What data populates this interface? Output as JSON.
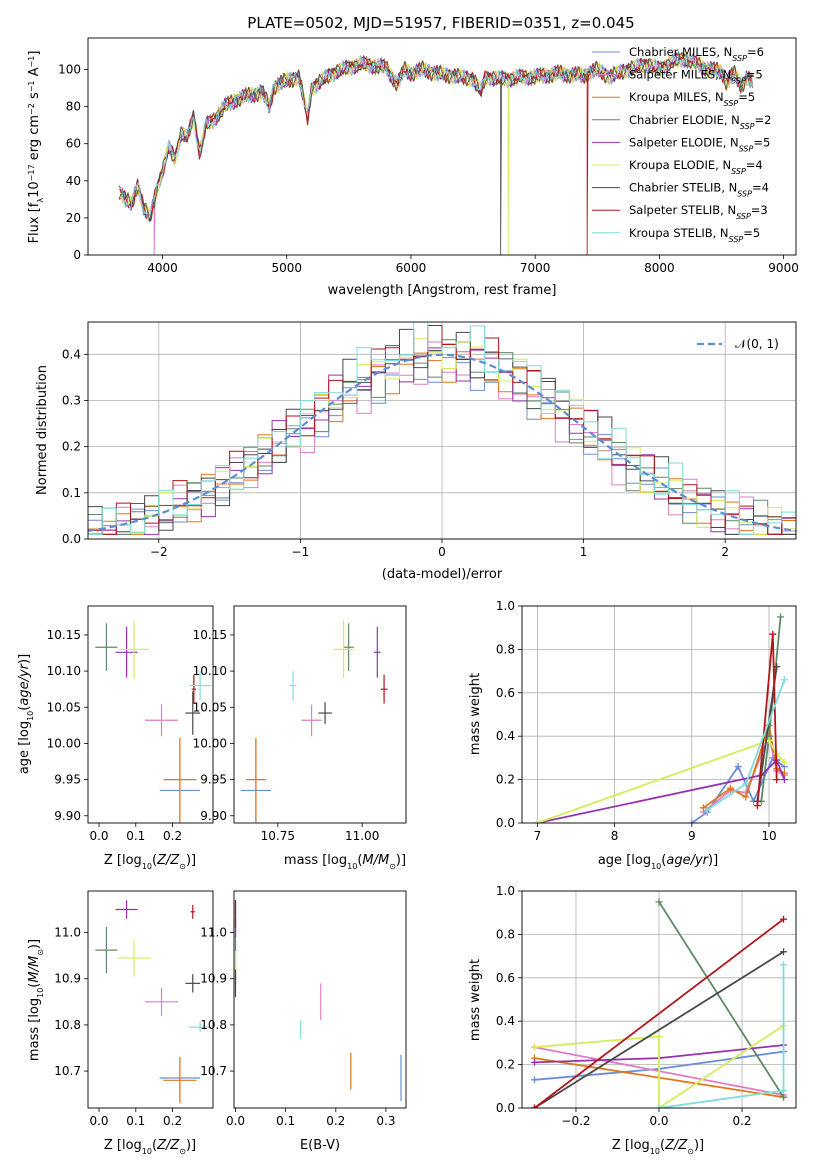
{
  "figure": {
    "title": "PLATE=0502, MJD=51957, FIBERID=0351, z=0.045"
  },
  "series": [
    {
      "name": "Chabrier MILES",
      "nssp": "6",
      "color": "#6a8ed8"
    },
    {
      "name": "Salpeter MILES",
      "nssp": "5",
      "color": "#de7ec4"
    },
    {
      "name": "Kroupa MILES",
      "nssp": "5",
      "color": "#e0761a"
    },
    {
      "name": "Chabrier ELODIE",
      "nssp": "2",
      "color": "#5e8a65"
    },
    {
      "name": "Salpeter ELODIE",
      "nssp": "5",
      "color": "#9433b0"
    },
    {
      "name": "Kroupa ELODIE",
      "nssp": "4",
      "color": "#d5ec5a"
    },
    {
      "name": "Chabrier STELIB",
      "nssp": "4",
      "color": "#484848"
    },
    {
      "name": "Salpeter STELIB",
      "nssp": "3",
      "color": "#b3151c"
    },
    {
      "name": "Kroupa STELIB",
      "nssp": "5",
      "color": "#7edcdc"
    }
  ],
  "chart_data": [
    {
      "id": "spectrum",
      "type": "line",
      "title": "PLATE=0502, MJD=51957, FIBERID=0351, z=0.045",
      "xlabel": "wavelength [Angstrom, rest frame]",
      "ylabel": "Flux [f_λ 10^-17 erg cm^-2 s^-1 A^-1]",
      "xlim": [
        3400,
        9100
      ],
      "ylim": [
        0,
        117
      ],
      "xticks": [
        4000,
        5000,
        6000,
        7000,
        8000,
        9000
      ],
      "yticks": [
        0,
        20,
        40,
        60,
        80,
        100
      ],
      "legend": "top-right",
      "x": [
        3650,
        3700,
        3750,
        3800,
        3850,
        3900,
        3950,
        4000,
        4050,
        4100,
        4150,
        4200,
        4250,
        4300,
        4350,
        4400,
        4450,
        4500,
        4600,
        4700,
        4800,
        4860,
        4900,
        5000,
        5100,
        5170,
        5200,
        5300,
        5400,
        5500,
        5600,
        5700,
        5800,
        5890,
        5950,
        6000,
        6100,
        6200,
        6300,
        6400,
        6500,
        6563,
        6600,
        6700,
        6800,
        6900,
        7000,
        7100,
        7200,
        7300,
        7400,
        7500,
        7600,
        7700,
        7800,
        7900,
        8000,
        8100,
        8200,
        8300,
        8400,
        8500,
        8542,
        8600,
        8662,
        8700,
        8750
      ],
      "y": [
        35,
        30,
        27,
        38,
        25,
        20,
        35,
        45,
        58,
        52,
        66,
        63,
        75,
        55,
        70,
        72,
        76,
        80,
        84,
        86,
        88,
        80,
        91,
        94,
        96,
        73,
        90,
        95,
        99,
        101,
        103,
        102,
        101,
        92,
        100,
        98,
        100,
        98,
        97,
        96,
        95,
        88,
        96,
        95,
        95,
        96,
        96,
        97,
        98,
        97,
        97,
        100,
        96,
        99,
        101,
        103,
        100,
        104,
        106,
        103,
        100,
        99,
        93,
        98,
        91,
        96,
        93
      ],
      "line_drops": [
        {
          "series": "Chabrier STELIB",
          "x": 6720
        },
        {
          "series": "Kroupa ELODIE",
          "x": 6780
        },
        {
          "series": "Salpeter STELIB",
          "x": 7420
        },
        {
          "series": "Salpeter MILES",
          "x": 3930
        }
      ]
    },
    {
      "id": "residuals",
      "type": "line",
      "xlabel": "(data-model)/error",
      "ylabel": "Normed distribution",
      "xlim": [
        -2.5,
        2.5
      ],
      "ylim": [
        0,
        0.47
      ],
      "xticks": [
        -2,
        -1,
        0,
        1,
        2
      ],
      "yticks": [
        0.0,
        0.1,
        0.2,
        0.3,
        0.4
      ],
      "grid": true,
      "legend": "top-right",
      "reference": {
        "label": "𝒩(0, 1)",
        "color": "#5b8ed6",
        "dashed": true
      },
      "histogram_bin_width": 0.1,
      "histogram_note": "step histograms per series, approximately normal around 0"
    },
    {
      "id": "age_vs_z",
      "type": "scatter",
      "xlabel": "Z [log10(Z/Z⊙)]",
      "ylabel": "age  [log10(age/yr)]",
      "xlim": [
        -0.03,
        0.31
      ],
      "ylim": [
        9.89,
        10.19
      ],
      "xticks": [
        0.0,
        0.1,
        0.2
      ],
      "yticks": [
        9.9,
        9.95,
        10.0,
        10.05,
        10.1,
        10.15
      ],
      "points": [
        {
          "series": "Chabrier MILES",
          "x": 0.22,
          "y": 9.935,
          "xerr": 0.055,
          "yerr": 0.07
        },
        {
          "series": "Salpeter MILES",
          "x": 0.17,
          "y": 10.032,
          "xerr": 0.045,
          "yerr": 0.022
        },
        {
          "series": "Kroupa MILES",
          "x": 0.22,
          "y": 9.95,
          "xerr": 0.045,
          "yerr": 0.058
        },
        {
          "series": "Chabrier ELODIE",
          "x": 0.02,
          "y": 10.133,
          "xerr": 0.03,
          "yerr": 0.033
        },
        {
          "series": "Salpeter ELODIE",
          "x": 0.075,
          "y": 10.126,
          "xerr": 0.03,
          "yerr": 0.035
        },
        {
          "series": "Kroupa ELODIE",
          "x": 0.095,
          "y": 10.13,
          "xerr": 0.04,
          "yerr": 0.04
        },
        {
          "series": "Chabrier STELIB",
          "x": 0.255,
          "y": 10.042,
          "xerr": 0.02,
          "yerr": 0.03
        },
        {
          "series": "Salpeter STELIB",
          "x": 0.258,
          "y": 10.075,
          "xerr": 0.006,
          "yerr": 0.02
        },
        {
          "series": "Kroupa STELIB",
          "x": 0.275,
          "y": 10.08,
          "xerr": 0.03,
          "yerr": 0.02
        }
      ]
    },
    {
      "id": "age_vs_mass",
      "type": "scatter",
      "xlabel": "mass [log10(M/M⊙)]",
      "ylabel": "",
      "xlim": [
        10.62,
        11.13
      ],
      "ylim": [
        9.89,
        10.19
      ],
      "xticks": [
        10.75,
        11.0
      ],
      "yticks": [
        9.9,
        9.95,
        10.0,
        10.05,
        10.1,
        10.15
      ],
      "points": [
        {
          "series": "Chabrier MILES",
          "x": 10.685,
          "y": 9.935,
          "xerr": 0.045,
          "yerr": 0.07
        },
        {
          "series": "Salpeter MILES",
          "x": 10.85,
          "y": 10.032,
          "xerr": 0.03,
          "yerr": 0.022
        },
        {
          "series": "Kroupa MILES",
          "x": 10.685,
          "y": 9.95,
          "xerr": 0.03,
          "yerr": 0.058
        },
        {
          "series": "Chabrier ELODIE",
          "x": 10.96,
          "y": 10.133,
          "xerr": 0.015,
          "yerr": 0.033
        },
        {
          "series": "Salpeter ELODIE",
          "x": 11.045,
          "y": 10.126,
          "xerr": 0.01,
          "yerr": 0.035
        },
        {
          "series": "Kroupa ELODIE",
          "x": 10.945,
          "y": 10.13,
          "xerr": 0.03,
          "yerr": 0.04
        },
        {
          "series": "Chabrier STELIB",
          "x": 10.89,
          "y": 10.042,
          "xerr": 0.02,
          "yerr": 0.015
        },
        {
          "series": "Salpeter STELIB",
          "x": 11.065,
          "y": 10.075,
          "xerr": 0.01,
          "yerr": 0.02
        },
        {
          "series": "Kroupa STELIB",
          "x": 10.795,
          "y": 10.08,
          "xerr": 0.01,
          "yerr": 0.02
        }
      ]
    },
    {
      "id": "weight_vs_age",
      "type": "line",
      "xlabel": "age  [log10(age/yr)]",
      "ylabel": "mass weight",
      "xlim": [
        6.8,
        10.35
      ],
      "ylim": [
        0,
        1.0
      ],
      "xticks": [
        7,
        8,
        9,
        10
      ],
      "yticks": [
        0.0,
        0.2,
        0.4,
        0.6,
        0.8,
        1.0
      ],
      "grid": true,
      "lines": [
        {
          "series": "Chabrier MILES",
          "x": [
            9.0,
            9.2,
            9.6,
            9.8,
            10.05,
            10.2
          ],
          "y": [
            0.0,
            0.05,
            0.26,
            0.1,
            0.3,
            0.26
          ]
        },
        {
          "series": "Salpeter MILES",
          "x": [
            9.15,
            9.5,
            9.7,
            10.0,
            10.1,
            10.2
          ],
          "y": [
            0.05,
            0.15,
            0.14,
            0.4,
            0.24,
            0.22
          ]
        },
        {
          "series": "Kroupa MILES",
          "x": [
            9.15,
            9.5,
            9.7,
            10.0,
            10.1,
            10.2
          ],
          "y": [
            0.07,
            0.16,
            0.12,
            0.45,
            0.25,
            0.23
          ]
        },
        {
          "series": "Chabrier ELODIE",
          "x": [
            9.9,
            10.0,
            10.15
          ],
          "y": [
            0.1,
            0.4,
            0.95
          ]
        },
        {
          "series": "Salpeter ELODIE",
          "x": [
            7.0,
            9.9,
            10.1,
            10.2
          ],
          "y": [
            0.0,
            0.22,
            0.29,
            0.2
          ]
        },
        {
          "series": "Kroupa ELODIE",
          "x": [
            7.0,
            10.0,
            10.1,
            10.2
          ],
          "y": [
            0.0,
            0.38,
            0.32,
            0.28
          ]
        },
        {
          "series": "Chabrier STELIB",
          "x": [
            9.85,
            10.1
          ],
          "y": [
            0.1,
            0.72
          ]
        },
        {
          "series": "Salpeter STELIB",
          "x": [
            9.85,
            10.05,
            10.1
          ],
          "y": [
            0.08,
            0.87,
            0.2
          ]
        },
        {
          "series": "Kroupa STELIB",
          "x": [
            9.2,
            9.7,
            10.2
          ],
          "y": [
            0.06,
            0.18,
            0.66
          ]
        }
      ]
    },
    {
      "id": "mass_vs_z",
      "type": "scatter",
      "xlabel": "Z [log10(Z/Z⊙)]",
      "ylabel": "mass [log10(M/M⊙)]",
      "xlim": [
        -0.03,
        0.31
      ],
      "ylim": [
        10.62,
        11.09
      ],
      "xticks": [
        0.0,
        0.1,
        0.2
      ],
      "yticks": [
        10.7,
        10.8,
        10.9,
        11.0
      ],
      "points": [
        {
          "series": "Chabrier MILES",
          "x": 0.22,
          "y": 10.685,
          "xerr": 0.055,
          "yerr": 0.045
        },
        {
          "series": "Salpeter MILES",
          "x": 0.17,
          "y": 10.85,
          "xerr": 0.045,
          "yerr": 0.03
        },
        {
          "series": "Kroupa MILES",
          "x": 0.22,
          "y": 10.68,
          "xerr": 0.045,
          "yerr": 0.05
        },
        {
          "series": "Chabrier ELODIE",
          "x": 0.02,
          "y": 10.962,
          "xerr": 0.03,
          "yerr": 0.05
        },
        {
          "series": "Salpeter ELODIE",
          "x": 0.075,
          "y": 11.05,
          "xerr": 0.03,
          "yerr": 0.02
        },
        {
          "series": "Kroupa ELODIE",
          "x": 0.095,
          "y": 10.945,
          "xerr": 0.045,
          "yerr": 0.04
        },
        {
          "series": "Chabrier STELIB",
          "x": 0.255,
          "y": 10.89,
          "xerr": 0.02,
          "yerr": 0.02
        },
        {
          "series": "Salpeter STELIB",
          "x": 0.255,
          "y": 11.045,
          "xerr": 0.006,
          "yerr": 0.015
        },
        {
          "series": "Kroupa STELIB",
          "x": 0.275,
          "y": 10.795,
          "xerr": 0.03,
          "yerr": 0.01
        }
      ]
    },
    {
      "id": "mass_vs_ebv",
      "type": "scatter",
      "xlabel": "E(B-V)",
      "ylabel": "",
      "xlim": [
        -0.003,
        0.34
      ],
      "ylim": [
        10.62,
        11.09
      ],
      "xticks": [
        0.0,
        0.1,
        0.2,
        0.3
      ],
      "yticks": [
        10.7,
        10.8,
        10.9,
        11.0
      ],
      "points": [
        {
          "series": "Chabrier MILES",
          "x": 0.33,
          "y": 10.685,
          "xerr": 0.0,
          "yerr": 0.05
        },
        {
          "series": "Salpeter MILES",
          "x": 0.17,
          "y": 10.85,
          "xerr": 0.0,
          "yerr": 0.04
        },
        {
          "series": "Kroupa MILES",
          "x": 0.23,
          "y": 10.7,
          "xerr": 0.0,
          "yerr": 0.04
        },
        {
          "series": "Chabrier ELODIE",
          "x": 0.0,
          "y": 10.96,
          "xerr": 0.0,
          "yerr": 0.07
        },
        {
          "series": "Salpeter ELODIE",
          "x": 0.0,
          "y": 11.03,
          "xerr": 0.0,
          "yerr": 0.04
        },
        {
          "series": "Kroupa ELODIE",
          "x": 0.0,
          "y": 10.94,
          "xerr": 0.0,
          "yerr": 0.02
        },
        {
          "series": "Chabrier STELIB",
          "x": 0.0,
          "y": 10.89,
          "xerr": 0.0,
          "yerr": 0.03
        },
        {
          "series": "Salpeter STELIB",
          "x": 0.0,
          "y": 11.04,
          "xerr": 0.0,
          "yerr": 0.03
        },
        {
          "series": "Kroupa STELIB",
          "x": 0.13,
          "y": 10.79,
          "xerr": 0.0,
          "yerr": 0.02
        }
      ]
    },
    {
      "id": "weight_vs_z",
      "type": "line",
      "xlabel": "Z [log10(Z/Z⊙)]",
      "ylabel": "mass weight",
      "xlim": [
        -0.33,
        0.33
      ],
      "ylim": [
        0,
        1.0
      ],
      "xticks": [
        -0.2,
        0.0,
        0.2
      ],
      "yticks": [
        0.0,
        0.2,
        0.4,
        0.6,
        0.8,
        1.0
      ],
      "grid": true,
      "lines": [
        {
          "series": "Chabrier MILES",
          "x": [
            -0.3,
            0.0,
            0.3
          ],
          "y": [
            0.13,
            0.18,
            0.26
          ]
        },
        {
          "series": "Salpeter MILES",
          "x": [
            -0.3,
            0.3
          ],
          "y": [
            0.28,
            0.06
          ]
        },
        {
          "series": "Kroupa MILES",
          "x": [
            -0.3,
            0.3
          ],
          "y": [
            0.23,
            0.05
          ]
        },
        {
          "series": "Chabrier ELODIE",
          "x": [
            0.0,
            0.3
          ],
          "y": [
            0.95,
            0.05
          ]
        },
        {
          "series": "Salpeter ELODIE",
          "x": [
            -0.3,
            0.0,
            0.3
          ],
          "y": [
            0.21,
            0.23,
            0.29
          ]
        },
        {
          "series": "Kroupa ELODIE",
          "x": [
            -0.3,
            0.0,
            0.0,
            0.3
          ],
          "y": [
            0.28,
            0.33,
            0.0,
            0.38
          ]
        },
        {
          "series": "Chabrier STELIB",
          "x": [
            -0.3,
            0.3
          ],
          "y": [
            0.0,
            0.72
          ]
        },
        {
          "series": "Salpeter STELIB",
          "x": [
            -0.3,
            0.3
          ],
          "y": [
            0.0,
            0.87
          ]
        },
        {
          "series": "Kroupa STELIB",
          "x": [
            0.0,
            0.3,
            0.3
          ],
          "y": [
            0.0,
            0.08,
            0.66
          ]
        }
      ]
    }
  ]
}
